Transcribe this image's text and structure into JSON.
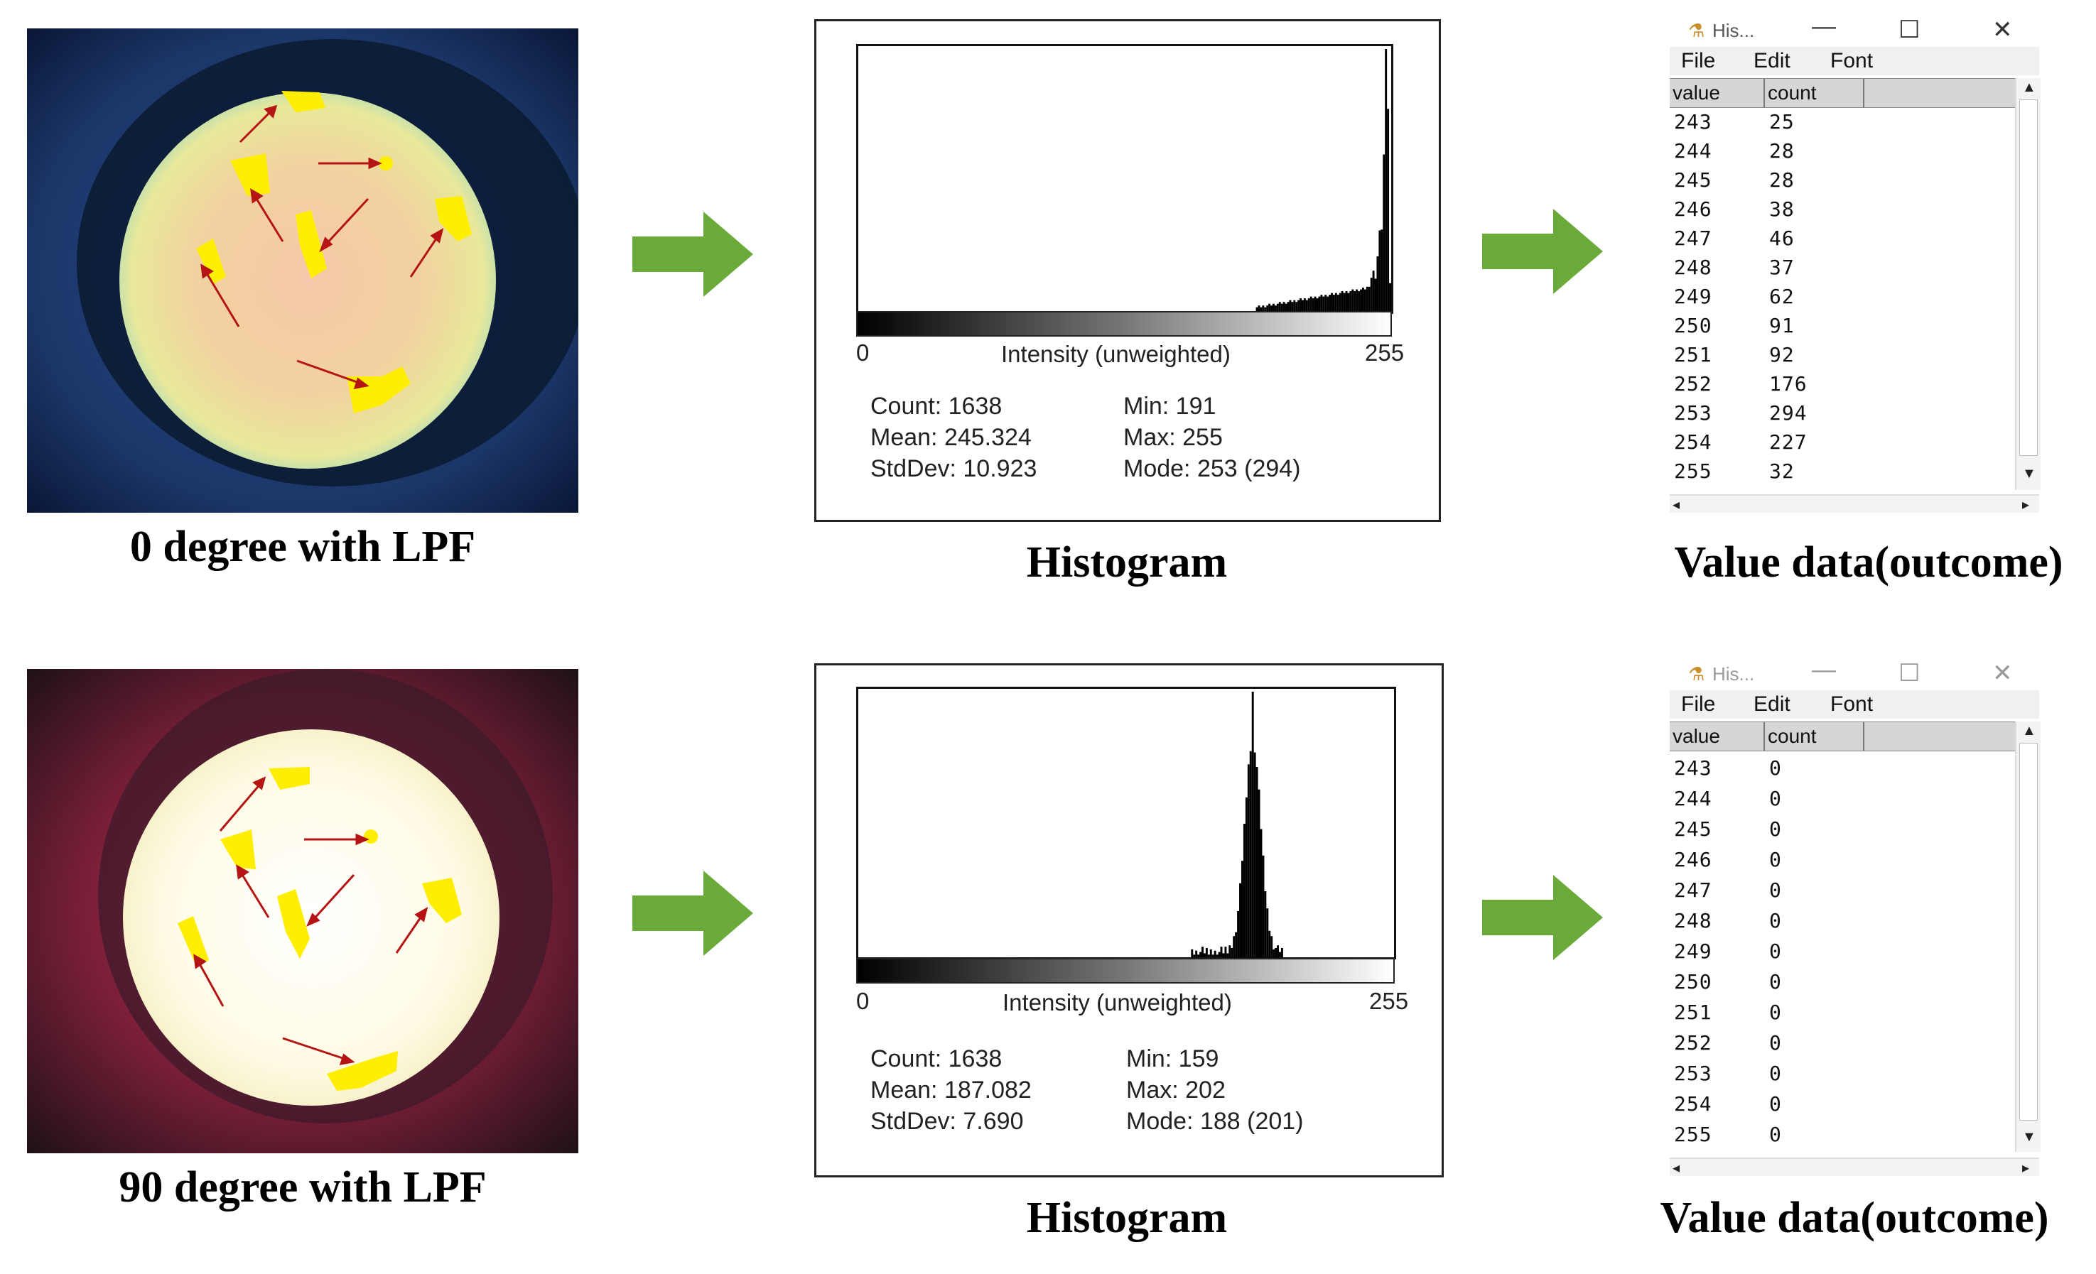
{
  "colors": {
    "arrow_green": "#6aaa3a",
    "marker_yellow": "#ffee00",
    "pointer_red": "#b41414"
  },
  "panels": [
    {
      "caption": "0 degree with LPF",
      "histogram": {
        "caption": "Histogram",
        "axis_min": "0",
        "axis_max": "255",
        "axis_label": "Intensity (unweighted)",
        "count": "Count: 1638",
        "mean": "Mean: 245.324",
        "stddev": "StdDev: 10.923",
        "min": "Min: 191",
        "max": "Max: 255",
        "mode": "Mode: 253 (294)"
      },
      "table": {
        "title": "His...",
        "menu": [
          "File",
          "Edit",
          "Font"
        ],
        "columns": [
          "value",
          "count"
        ],
        "rows": [
          [
            "243",
            "25"
          ],
          [
            "244",
            "28"
          ],
          [
            "245",
            "28"
          ],
          [
            "246",
            "38"
          ],
          [
            "247",
            "46"
          ],
          [
            "248",
            "37"
          ],
          [
            "249",
            "62"
          ],
          [
            "250",
            "91"
          ],
          [
            "251",
            "92"
          ],
          [
            "252",
            "176"
          ],
          [
            "253",
            "294"
          ],
          [
            "254",
            "227"
          ],
          [
            "255",
            "32"
          ]
        ],
        "caption": "Value data(outcome)"
      }
    },
    {
      "caption": "90 degree with LPF",
      "histogram": {
        "caption": "Histogram",
        "axis_min": "0",
        "axis_max": "255",
        "axis_label": "Intensity (unweighted)",
        "count": "Count: 1638",
        "mean": "Mean: 187.082",
        "stddev": "StdDev: 7.690",
        "min": "Min: 159",
        "max": "Max: 202",
        "mode": "Mode: 188 (201)"
      },
      "table": {
        "title": "His...",
        "menu": [
          "File",
          "Edit",
          "Font"
        ],
        "columns": [
          "value",
          "count"
        ],
        "rows": [
          [
            "243",
            "0"
          ],
          [
            "244",
            "0"
          ],
          [
            "245",
            "0"
          ],
          [
            "246",
            "0"
          ],
          [
            "247",
            "0"
          ],
          [
            "248",
            "0"
          ],
          [
            "249",
            "0"
          ],
          [
            "250",
            "0"
          ],
          [
            "251",
            "0"
          ],
          [
            "252",
            "0"
          ],
          [
            "253",
            "0"
          ],
          [
            "254",
            "0"
          ],
          [
            "255",
            "0"
          ]
        ],
        "caption": "Value data(outcome)"
      }
    }
  ]
}
